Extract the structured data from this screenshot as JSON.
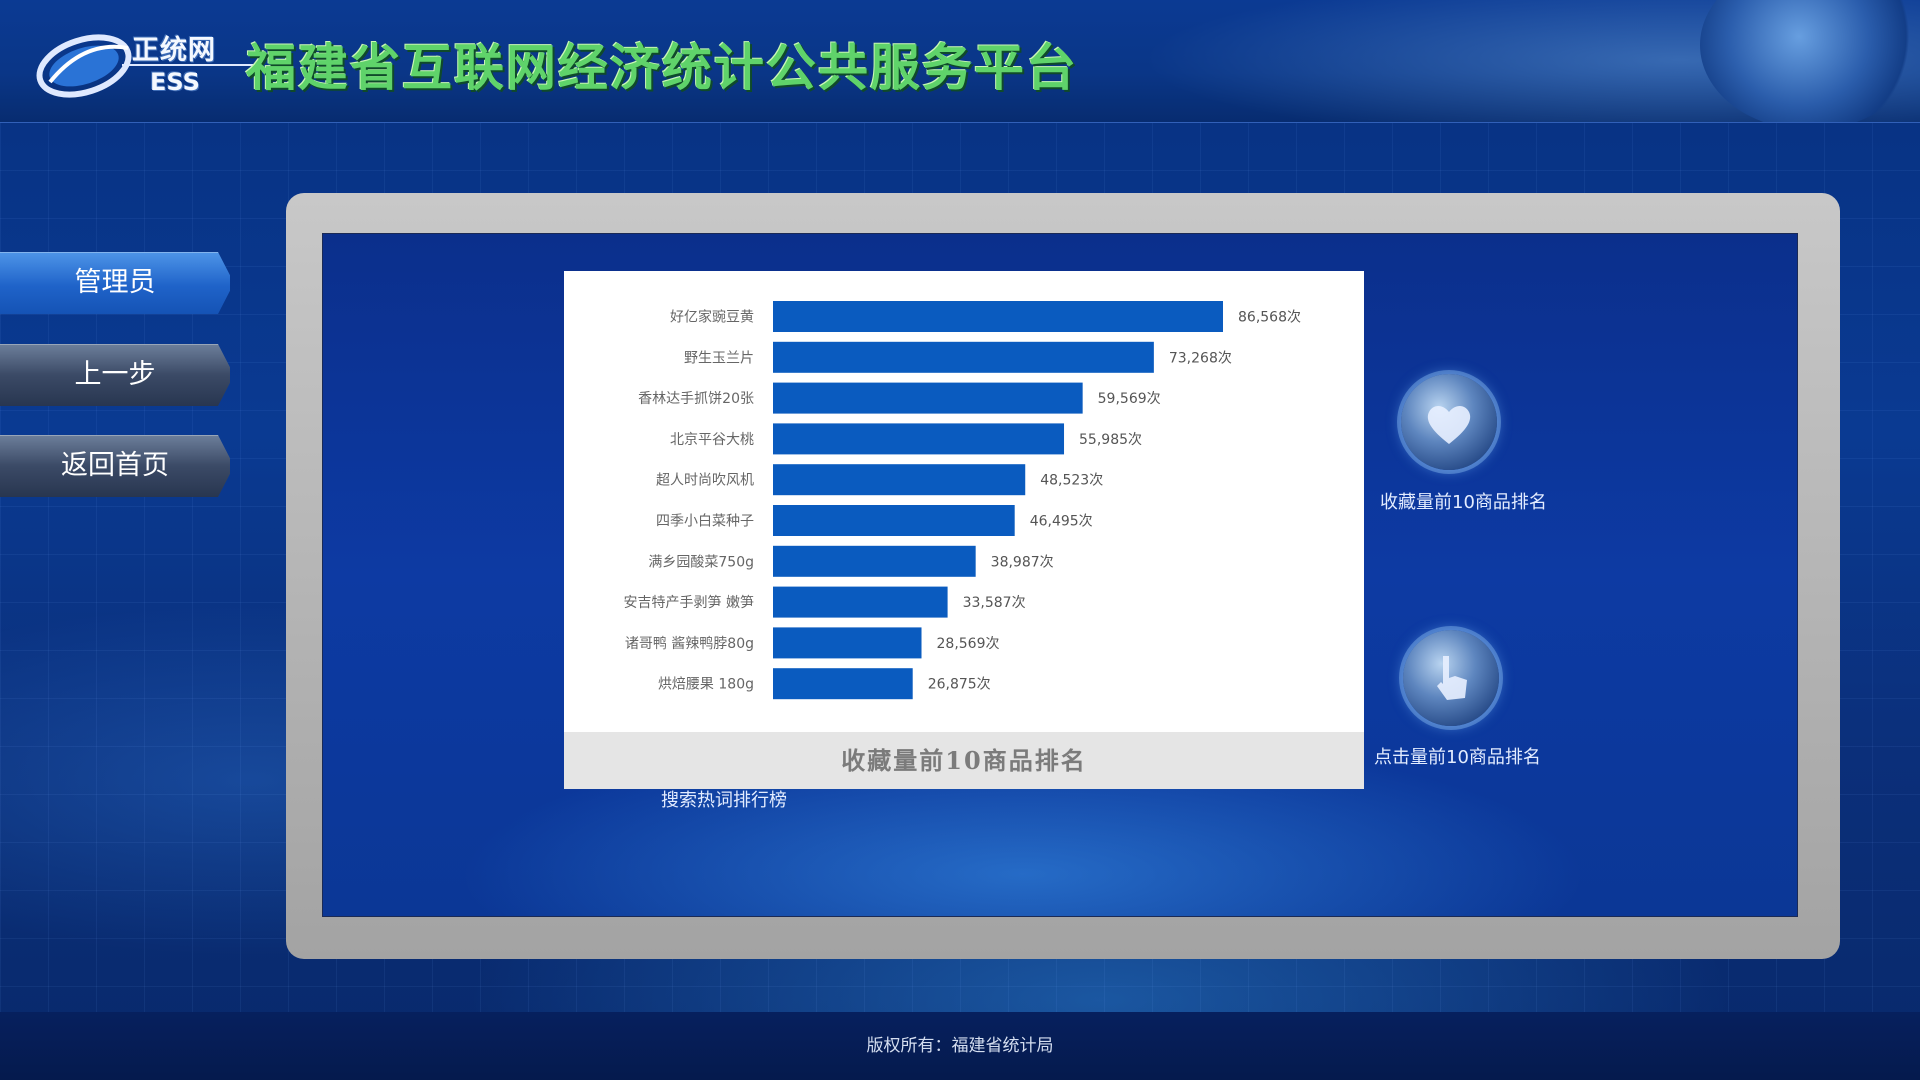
{
  "header": {
    "logo_cn": "正统网",
    "logo_en": "ESS",
    "title": "福建省互联网经济统计公共服务平台"
  },
  "nav": {
    "items": [
      {
        "label": "管理员",
        "active": true
      },
      {
        "label": "上一步",
        "active": false
      },
      {
        "label": "返回首页",
        "active": false
      }
    ]
  },
  "options": {
    "favorites": {
      "label": "收藏量前10商品排名",
      "icon": "heart-icon"
    },
    "clicks": {
      "label": "点击量前10商品排名",
      "icon": "hand-pointer-icon"
    },
    "search": {
      "label": "搜索热词排行榜"
    }
  },
  "chart_data": {
    "type": "bar",
    "orientation": "horizontal",
    "title": "收藏量前10商品排名",
    "categories": [
      "好亿家豌豆黄",
      "野生玉兰片",
      "香林达手抓饼20张",
      "北京平谷大桃",
      "超人时尚吹风机",
      "四季小白菜种子",
      "满乡园酸菜750g",
      "安吉特产手剥笋 嫩笋",
      "诸哥鸭 酱辣鸭脖80g",
      "烘焙腰果 180g"
    ],
    "values": [
      86568,
      73268,
      59569,
      55985,
      48523,
      46495,
      38987,
      33587,
      28569,
      26875
    ],
    "value_labels": [
      "86,568次",
      "73,268次",
      "59,569次",
      "55,985次",
      "48,523次",
      "46,495次",
      "38,987次",
      "33,587次",
      "28,569次",
      "26,875次"
    ],
    "bar_color": "#0a5bbf",
    "grid": false,
    "legend": "none"
  },
  "footer": {
    "copyright": "版权所有：福建省统计局"
  }
}
